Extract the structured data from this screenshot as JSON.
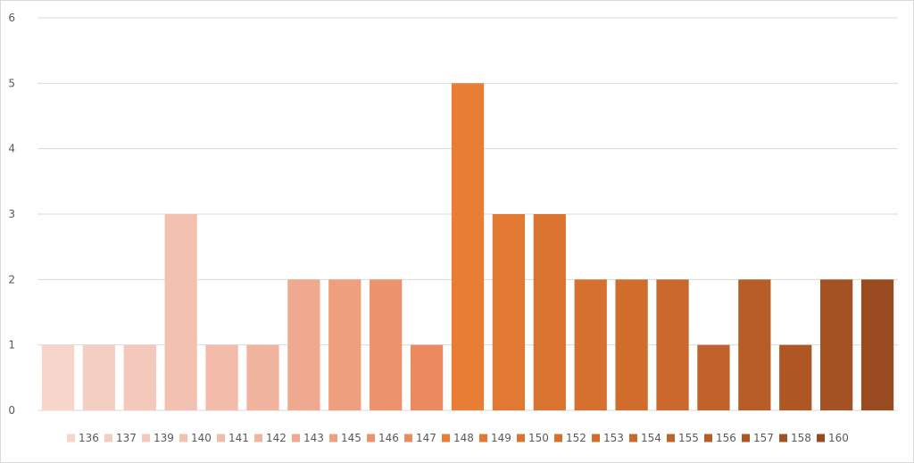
{
  "chart_data": {
    "type": "bar",
    "title": "",
    "xlabel": "",
    "ylabel": "",
    "ylim": [
      0,
      6
    ],
    "yticks": [
      0,
      1,
      2,
      3,
      4,
      5,
      6
    ],
    "grid": true,
    "legend_position": "bottom",
    "categories": [
      "136",
      "137",
      "139",
      "140",
      "141",
      "142",
      "143",
      "145",
      "146",
      "147",
      "148",
      "149",
      "150",
      "152",
      "153",
      "154",
      "155",
      "156",
      "157",
      "158",
      "160"
    ],
    "values": [
      1,
      1,
      1,
      3,
      1,
      1,
      2,
      2,
      2,
      1,
      5,
      3,
      3,
      2,
      2,
      2,
      1,
      2,
      1,
      2,
      2
    ],
    "colors": [
      "#F7D5CA",
      "#F5CEC3",
      "#F4C8BB",
      "#F3C1B2",
      "#F2BBAA",
      "#F1B49F",
      "#EFA98E",
      "#EE9F7E",
      "#EC936E",
      "#EA8A5E",
      "#E87D35",
      "#E17932",
      "#DB7431",
      "#D6702F",
      "#D06D2D",
      "#CA682D",
      "#C1622A",
      "#B85D27",
      "#AE5724",
      "#A45223",
      "#994A1F"
    ]
  }
}
